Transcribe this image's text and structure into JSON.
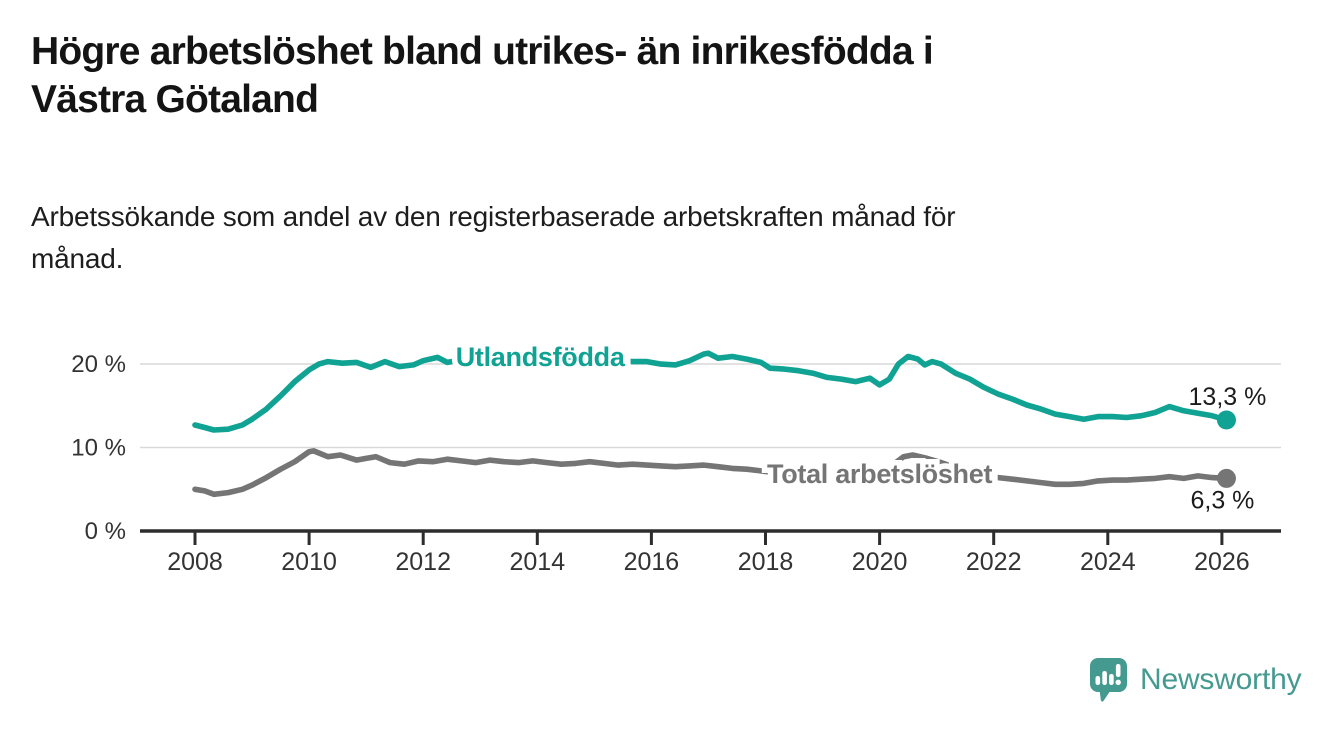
{
  "header": {
    "title_lines": [
      "Högre arbetslöshet bland utrikes- än inrikesfödda i",
      "Västra Götaland"
    ],
    "subtitle_lines": [
      "Arbetssökande som andel av den registerbaserade arbetskraften månad för",
      "månad."
    ]
  },
  "chart_data": {
    "type": "line",
    "title": "",
    "xlabel": "",
    "ylabel": "",
    "x_unit": "year (monthly series)",
    "y_unit": "% av registerbaserad arbetskraft",
    "ylim": [
      0,
      23.5
    ],
    "xlim": [
      2007.05,
      2027.05
    ],
    "grid": "horizontal",
    "legend_position": "inline-labels",
    "yticks": [
      {
        "value": 0,
        "label": "0 %"
      },
      {
        "value": 10,
        "label": "10 %"
      },
      {
        "value": 20,
        "label": "20 %"
      }
    ],
    "xticks": [
      {
        "value": 2008,
        "label": "2008"
      },
      {
        "value": 2010,
        "label": "2010"
      },
      {
        "value": 2012,
        "label": "2012"
      },
      {
        "value": 2014,
        "label": "2014"
      },
      {
        "value": 2016,
        "label": "2016"
      },
      {
        "value": 2018,
        "label": "2018"
      },
      {
        "value": 2020,
        "label": "2020"
      },
      {
        "value": 2022,
        "label": "2022"
      },
      {
        "value": 2024,
        "label": "2024"
      },
      {
        "value": 2026,
        "label": "2026"
      }
    ],
    "series": [
      {
        "name": "Utlandsfödda",
        "color": "#10a293",
        "end_dot": true,
        "last_value_label": "13,3 %",
        "end_label_offset": {
          "dx": 1,
          "dy": -23
        },
        "inline_label": {
          "text": "Utlandsfödda",
          "x": 2014.05,
          "y": 20.85
        },
        "points": [
          [
            2008.0,
            12.7
          ],
          [
            2008.17,
            12.4
          ],
          [
            2008.33,
            12.1
          ],
          [
            2008.58,
            12.2
          ],
          [
            2008.83,
            12.7
          ],
          [
            2009.0,
            13.4
          ],
          [
            2009.25,
            14.6
          ],
          [
            2009.5,
            16.2
          ],
          [
            2009.75,
            17.9
          ],
          [
            2010.0,
            19.3
          ],
          [
            2010.17,
            20.0
          ],
          [
            2010.33,
            20.3
          ],
          [
            2010.58,
            20.1
          ],
          [
            2010.83,
            20.2
          ],
          [
            2011.08,
            19.6
          ],
          [
            2011.33,
            20.3
          ],
          [
            2011.58,
            19.7
          ],
          [
            2011.83,
            19.9
          ],
          [
            2012.0,
            20.4
          ],
          [
            2012.25,
            20.8
          ],
          [
            2012.42,
            20.2
          ],
          [
            2012.67,
            20.5
          ],
          [
            2012.92,
            20.3
          ],
          [
            2013.17,
            20.5
          ],
          [
            2013.42,
            20.3
          ],
          [
            2013.67,
            20.6
          ],
          [
            2013.92,
            20.4
          ],
          [
            2014.17,
            20.6
          ],
          [
            2014.42,
            20.3
          ],
          [
            2014.67,
            20.5
          ],
          [
            2014.92,
            20.4
          ],
          [
            2015.17,
            20.2
          ],
          [
            2015.42,
            20.5
          ],
          [
            2015.67,
            20.3
          ],
          [
            2015.92,
            20.3
          ],
          [
            2016.17,
            20.0
          ],
          [
            2016.42,
            19.9
          ],
          [
            2016.67,
            20.4
          ],
          [
            2016.92,
            21.2
          ],
          [
            2017.0,
            21.3
          ],
          [
            2017.17,
            20.7
          ],
          [
            2017.42,
            20.9
          ],
          [
            2017.67,
            20.6
          ],
          [
            2017.92,
            20.2
          ],
          [
            2018.08,
            19.5
          ],
          [
            2018.33,
            19.4
          ],
          [
            2018.58,
            19.2
          ],
          [
            2018.83,
            18.9
          ],
          [
            2019.08,
            18.4
          ],
          [
            2019.33,
            18.2
          ],
          [
            2019.58,
            17.9
          ],
          [
            2019.83,
            18.3
          ],
          [
            2020.0,
            17.5
          ],
          [
            2020.17,
            18.2
          ],
          [
            2020.33,
            20.0
          ],
          [
            2020.5,
            20.9
          ],
          [
            2020.67,
            20.6
          ],
          [
            2020.79,
            19.9
          ],
          [
            2020.92,
            20.3
          ],
          [
            2021.08,
            20.0
          ],
          [
            2021.33,
            18.9
          ],
          [
            2021.58,
            18.2
          ],
          [
            2021.83,
            17.2
          ],
          [
            2022.08,
            16.4
          ],
          [
            2022.33,
            15.8
          ],
          [
            2022.58,
            15.1
          ],
          [
            2022.83,
            14.6
          ],
          [
            2023.08,
            14.0
          ],
          [
            2023.33,
            13.7
          ],
          [
            2023.58,
            13.4
          ],
          [
            2023.83,
            13.7
          ],
          [
            2024.08,
            13.7
          ],
          [
            2024.33,
            13.6
          ],
          [
            2024.58,
            13.8
          ],
          [
            2024.83,
            14.2
          ],
          [
            2025.08,
            14.9
          ],
          [
            2025.33,
            14.4
          ],
          [
            2025.58,
            14.1
          ],
          [
            2025.83,
            13.8
          ],
          [
            2026.08,
            13.3
          ]
        ]
      },
      {
        "name": "Total arbetslöshet",
        "color": "#757575",
        "end_dot": true,
        "last_value_label": "6,3 %",
        "end_label_offset": {
          "dx": -4,
          "dy": 22
        },
        "inline_label": {
          "text": "Total arbetslöshet",
          "x": 2020.0,
          "y": 6.85
        },
        "points": [
          [
            2008.0,
            5.0
          ],
          [
            2008.17,
            4.8
          ],
          [
            2008.33,
            4.4
          ],
          [
            2008.58,
            4.6
          ],
          [
            2008.83,
            5.0
          ],
          [
            2009.0,
            5.5
          ],
          [
            2009.25,
            6.4
          ],
          [
            2009.5,
            7.4
          ],
          [
            2009.75,
            8.3
          ],
          [
            2010.0,
            9.5
          ],
          [
            2010.08,
            9.6
          ],
          [
            2010.33,
            8.9
          ],
          [
            2010.55,
            9.1
          ],
          [
            2010.83,
            8.5
          ],
          [
            2011.0,
            8.7
          ],
          [
            2011.17,
            8.9
          ],
          [
            2011.42,
            8.2
          ],
          [
            2011.67,
            8.0
          ],
          [
            2011.92,
            8.4
          ],
          [
            2012.17,
            8.3
          ],
          [
            2012.42,
            8.6
          ],
          [
            2012.67,
            8.4
          ],
          [
            2012.92,
            8.2
          ],
          [
            2013.17,
            8.5
          ],
          [
            2013.42,
            8.3
          ],
          [
            2013.67,
            8.2
          ],
          [
            2013.92,
            8.4
          ],
          [
            2014.17,
            8.2
          ],
          [
            2014.42,
            8.0
          ],
          [
            2014.67,
            8.1
          ],
          [
            2014.92,
            8.3
          ],
          [
            2015.17,
            8.1
          ],
          [
            2015.42,
            7.9
          ],
          [
            2015.67,
            8.0
          ],
          [
            2015.92,
            7.9
          ],
          [
            2016.17,
            7.8
          ],
          [
            2016.42,
            7.7
          ],
          [
            2016.67,
            7.8
          ],
          [
            2016.92,
            7.9
          ],
          [
            2017.17,
            7.7
          ],
          [
            2017.42,
            7.5
          ],
          [
            2017.67,
            7.4
          ],
          [
            2017.92,
            7.2
          ],
          [
            2018.17,
            7.0
          ],
          [
            2018.42,
            6.9
          ],
          [
            2018.67,
            6.8
          ],
          [
            2018.92,
            6.9
          ],
          [
            2019.17,
            6.7
          ],
          [
            2019.42,
            6.6
          ],
          [
            2019.67,
            6.7
          ],
          [
            2019.92,
            7.0
          ],
          [
            2020.17,
            7.6
          ],
          [
            2020.42,
            8.9
          ],
          [
            2020.58,
            9.1
          ],
          [
            2020.83,
            8.7
          ],
          [
            2021.08,
            8.2
          ],
          [
            2021.33,
            7.6
          ],
          [
            2021.58,
            7.1
          ],
          [
            2021.83,
            6.7
          ],
          [
            2022.08,
            6.4
          ],
          [
            2022.33,
            6.2
          ],
          [
            2022.58,
            6.0
          ],
          [
            2022.83,
            5.8
          ],
          [
            2023.08,
            5.6
          ],
          [
            2023.33,
            5.6
          ],
          [
            2023.58,
            5.7
          ],
          [
            2023.83,
            6.0
          ],
          [
            2024.08,
            6.1
          ],
          [
            2024.33,
            6.1
          ],
          [
            2024.58,
            6.2
          ],
          [
            2024.83,
            6.3
          ],
          [
            2025.08,
            6.5
          ],
          [
            2025.33,
            6.3
          ],
          [
            2025.58,
            6.6
          ],
          [
            2025.83,
            6.4
          ],
          [
            2026.08,
            6.3
          ]
        ]
      }
    ]
  },
  "footer": {
    "brand": "Newsworthy",
    "brand_color": "#459a90"
  },
  "colors": {
    "accent_teal": "#10a293",
    "series_gray": "#757575",
    "axis": "#2d2d2d",
    "grid": "#d9d9d9",
    "axis_text": "#333333",
    "value_label_text": "#1c1c1c"
  }
}
